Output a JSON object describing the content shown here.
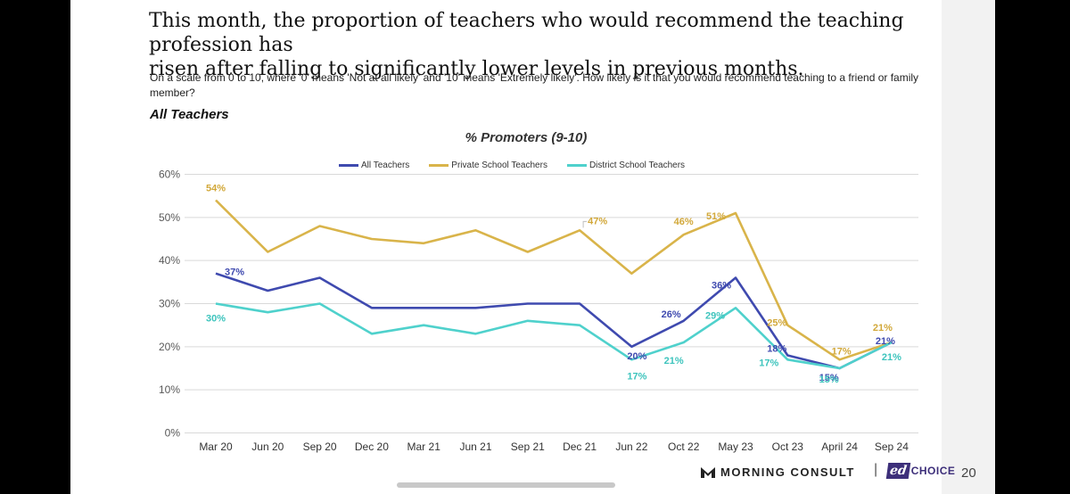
{
  "headline": "This month, the proportion of teachers who would recommend the teaching profession has\nrisen after falling to significantly lower levels in previous months.",
  "question": "On a scale from 0 to 10, where '0' means 'Not at all likely' and '10' means 'Extremely likely'. How likely is it that you would recommend teaching to a friend or family member?",
  "subgroup": "All Teachers",
  "page_number": "20",
  "brand": {
    "morning_consult": "MORNING CONSULT",
    "ed": "ed",
    "choice": "CHOICE",
    "separator": "|"
  },
  "colors": {
    "all": "#3f4aaf",
    "private": "#d9b44a",
    "district": "#4fd1cc"
  },
  "chart_data": {
    "type": "line",
    "title": "% Promoters (9-10)",
    "xlabel": "",
    "ylabel": "",
    "categories": [
      "Mar 20",
      "Jun 20",
      "Sep 20",
      "Dec 20",
      "Mar 21",
      "Jun 21",
      "Sep 21",
      "Dec 21",
      "Jun 22",
      "Oct 22",
      "May 23",
      "Oct 23",
      "April 24",
      "Sep 24"
    ],
    "y_ticks": [
      "0%",
      "10%",
      "20%",
      "30%",
      "40%",
      "50%",
      "60%"
    ],
    "ylim": [
      0,
      60
    ],
    "grid": true,
    "legend": "top-center",
    "series": [
      {
        "name": "All Teachers",
        "key": "all",
        "values": [
          37,
          33,
          36,
          29,
          29,
          29,
          30,
          30,
          20,
          26,
          36,
          18,
          15,
          21
        ],
        "labels": [
          "37%",
          null,
          null,
          null,
          null,
          null,
          null,
          null,
          "20%",
          "26%",
          "36%",
          "18%",
          "15%",
          "21%"
        ]
      },
      {
        "name": "Private School Teachers",
        "key": "private",
        "values": [
          54,
          42,
          48,
          45,
          44,
          47,
          42,
          47,
          37,
          46,
          51,
          25,
          17,
          21
        ],
        "labels": [
          "54%",
          null,
          null,
          null,
          null,
          null,
          null,
          "47%",
          null,
          "46%",
          "51%",
          "25%",
          "17%",
          "21%"
        ]
      },
      {
        "name": "District School Teachers",
        "key": "district",
        "values": [
          30,
          28,
          30,
          23,
          25,
          23,
          26,
          25,
          17,
          21,
          29,
          17,
          15,
          21
        ],
        "labels": [
          "30%",
          null,
          null,
          null,
          null,
          null,
          null,
          null,
          "17%",
          "21%",
          "29%",
          "17%",
          "15%",
          "21%"
        ]
      }
    ]
  }
}
